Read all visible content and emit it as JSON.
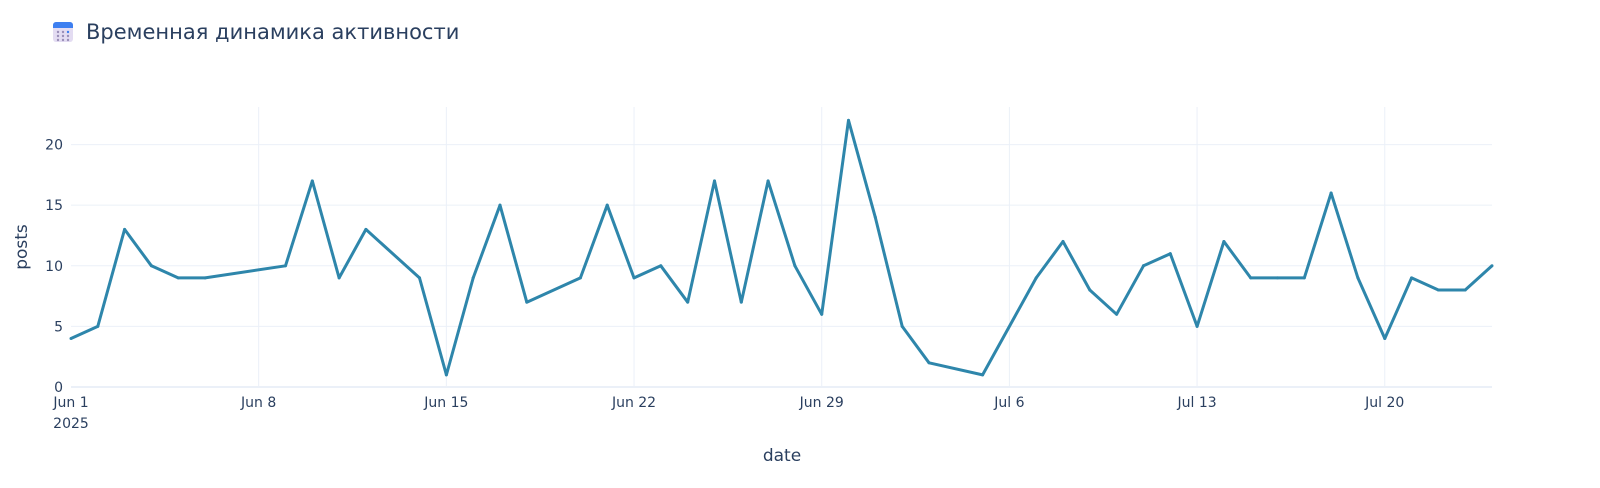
{
  "chart_data": {
    "type": "line",
    "title": "Временная динамика активности",
    "title_icon": "calendar-icon",
    "xlabel": "date",
    "ylabel": "posts",
    "ylim": [
      0,
      23.1
    ],
    "xlim": [
      "2025-06-01",
      "2025-07-24"
    ],
    "yticks": [
      0,
      5,
      10,
      15,
      20
    ],
    "xticks": [
      {
        "date": "2025-06-01",
        "label": "Jun 1",
        "sublabel": "2025"
      },
      {
        "date": "2025-06-08",
        "label": "Jun 8"
      },
      {
        "date": "2025-06-15",
        "label": "Jun 15"
      },
      {
        "date": "2025-06-22",
        "label": "Jun 22"
      },
      {
        "date": "2025-06-29",
        "label": "Jun 29"
      },
      {
        "date": "2025-07-06",
        "label": "Jul 6"
      },
      {
        "date": "2025-07-13",
        "label": "Jul 13"
      },
      {
        "date": "2025-07-20",
        "label": "Jul 20"
      }
    ],
    "line_color": "#2E86AB",
    "series": [
      {
        "name": "posts",
        "x": [
          "2025-06-01",
          "2025-06-02",
          "2025-06-03",
          "2025-06-04",
          "2025-06-05",
          "2025-06-06",
          "2025-06-09",
          "2025-06-10",
          "2025-06-11",
          "2025-06-12",
          "2025-06-14",
          "2025-06-15",
          "2025-06-16",
          "2025-06-17",
          "2025-06-18",
          "2025-06-20",
          "2025-06-21",
          "2025-06-22",
          "2025-06-23",
          "2025-06-24",
          "2025-06-25",
          "2025-06-26",
          "2025-06-27",
          "2025-06-28",
          "2025-06-29",
          "2025-06-30",
          "2025-07-01",
          "2025-07-02",
          "2025-07-03",
          "2025-07-05",
          "2025-07-07",
          "2025-07-08",
          "2025-07-09",
          "2025-07-10",
          "2025-07-11",
          "2025-07-12",
          "2025-07-13",
          "2025-07-14",
          "2025-07-15",
          "2025-07-16",
          "2025-07-17",
          "2025-07-18",
          "2025-07-19",
          "2025-07-20",
          "2025-07-21",
          "2025-07-22",
          "2025-07-23",
          "2025-07-24"
        ],
        "values": [
          4,
          5,
          13,
          10,
          9,
          9,
          10,
          17,
          9,
          13,
          9,
          1,
          9,
          15,
          7,
          9,
          15,
          9,
          10,
          7,
          17,
          7,
          17,
          10,
          6,
          22,
          14,
          5,
          2,
          1,
          9,
          12,
          8,
          6,
          10,
          11,
          5,
          12,
          9,
          9,
          9,
          16,
          9,
          4,
          9,
          8,
          8,
          10
        ]
      }
    ]
  }
}
